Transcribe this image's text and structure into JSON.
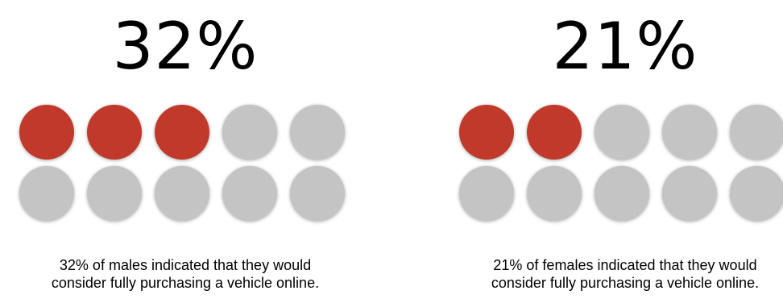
{
  "chart_data": [
    {
      "type": "waffle",
      "value_label": "32%",
      "filled": 3,
      "total": 10,
      "rows": 2,
      "columns": 5,
      "colors": {
        "filled": "#c0392b",
        "empty": "#c4c4c4"
      },
      "caption_line1": "32% of males indicated that they would",
      "caption_line2": "consider fully purchasing a vehicle online."
    },
    {
      "type": "waffle",
      "value_label": "21%",
      "filled": 2,
      "total": 10,
      "rows": 2,
      "columns": 5,
      "colors": {
        "filled": "#c0392b",
        "empty": "#c4c4c4"
      },
      "caption_line1": "21% of females indicated that they would",
      "caption_line2": "consider fully purchasing a vehicle online."
    }
  ]
}
